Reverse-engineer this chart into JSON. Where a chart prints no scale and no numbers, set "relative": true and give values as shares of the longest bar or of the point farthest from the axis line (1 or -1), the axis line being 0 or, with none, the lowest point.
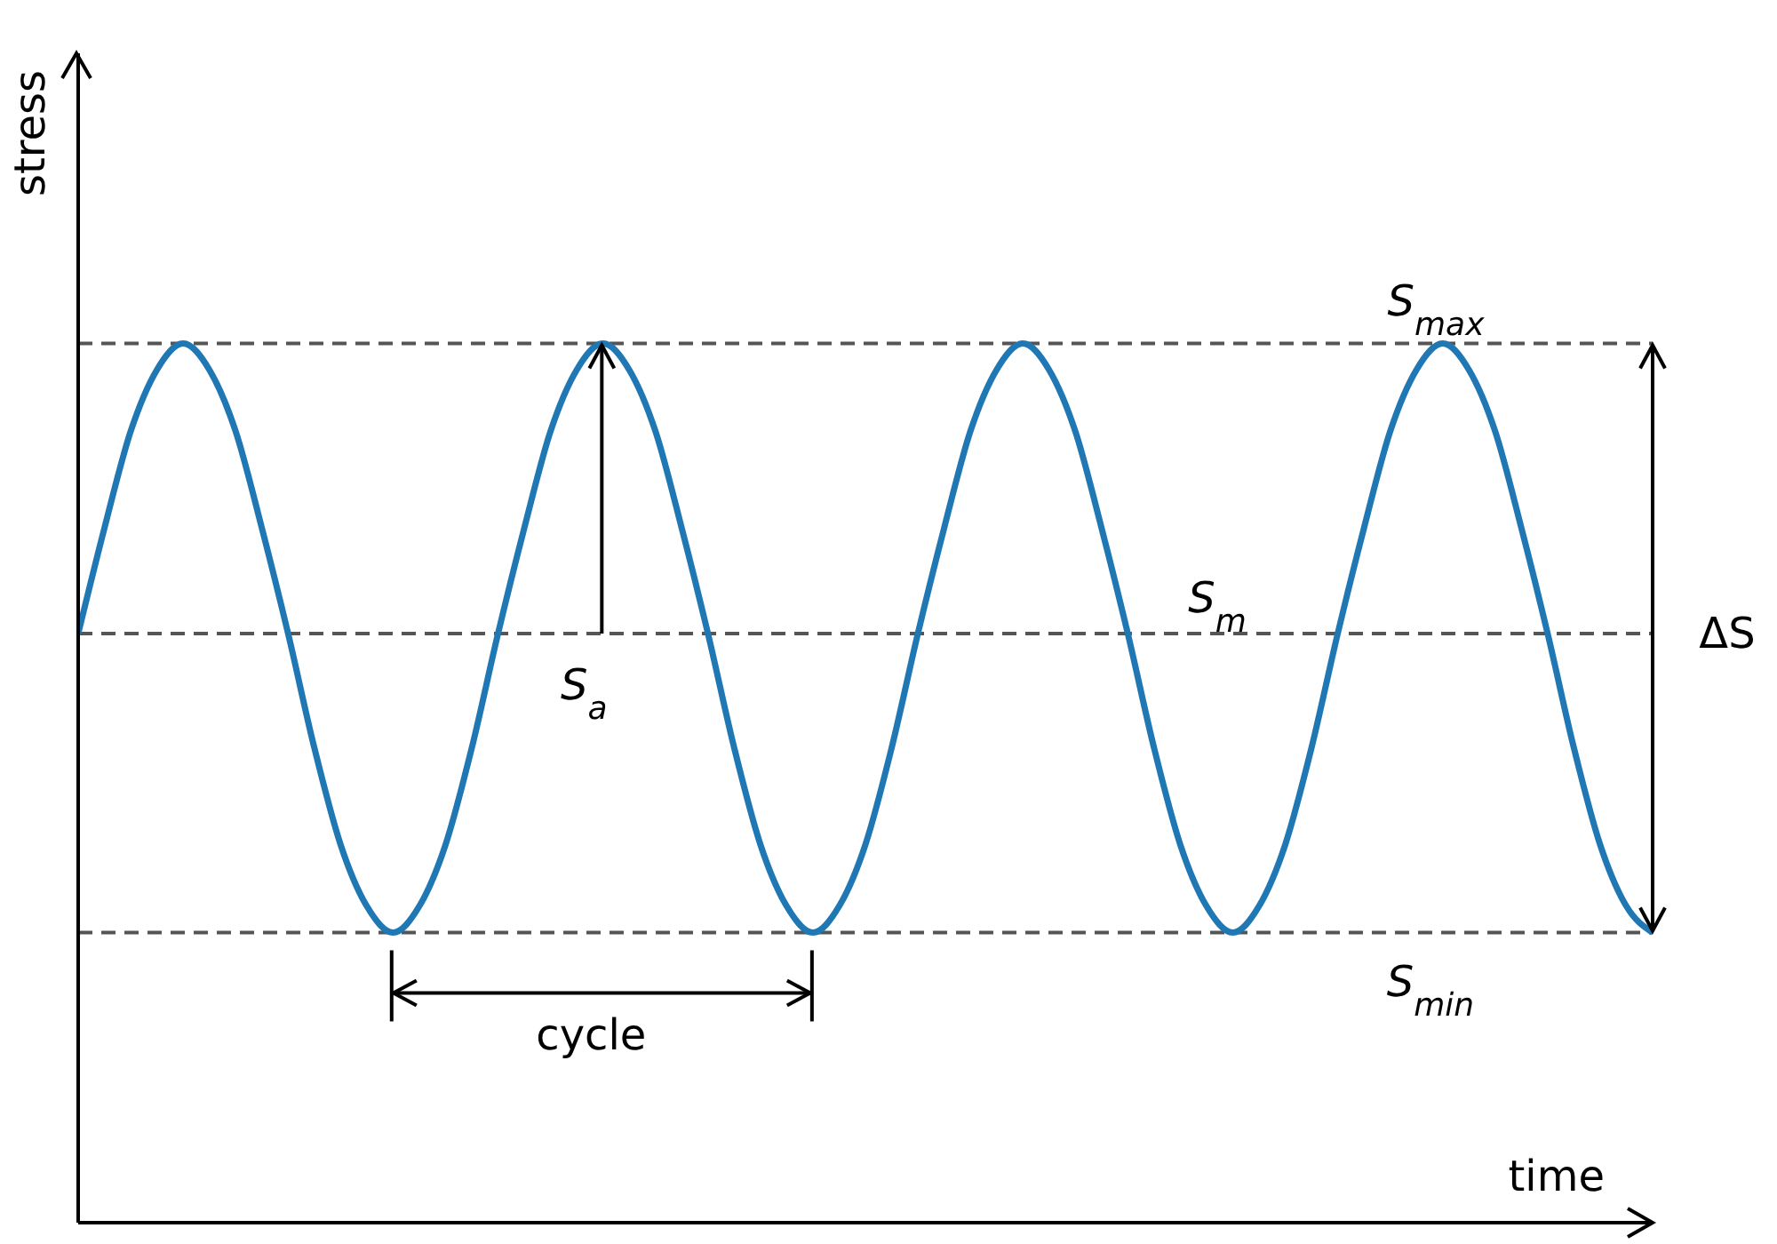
{
  "chart_data": {
    "type": "line",
    "relative": true,
    "xlabel": "time",
    "ylabel": "stress",
    "categories": [
      null,
      null,
      null,
      null,
      null,
      null,
      null,
      null,
      null,
      null,
      null,
      null,
      null,
      null,
      null,
      null,
      null,
      null,
      null,
      null,
      null,
      null,
      null,
      null,
      null,
      null,
      null,
      null,
      null,
      null,
      null,
      null,
      null,
      null,
      null,
      null,
      null,
      null,
      null,
      null,
      null,
      null,
      null,
      null,
      null,
      null,
      null,
      null,
      null,
      null,
      null,
      null,
      null,
      null,
      null,
      null,
      null,
      null,
      null,
      null,
      null
    ],
    "series": [
      {
        "color": "#1f77b4",
        "values": [
          0.67,
          0.79,
          0.9,
          0.97,
          1,
          0.97,
          0.9,
          0.79,
          0.67,
          0.54,
          0.43,
          0.36,
          0.33,
          0.36,
          0.43,
          0.54,
          0.67,
          0.79,
          0.9,
          0.97,
          1,
          0.97,
          0.9,
          0.79,
          0.67,
          0.54,
          0.43,
          0.36,
          0.33,
          0.36,
          0.43,
          0.54,
          0.67,
          0.79,
          0.9,
          0.97,
          1,
          0.97,
          0.9,
          0.79,
          0.67,
          0.54,
          0.43,
          0.36,
          0.33,
          0.36,
          0.43,
          0.54,
          0.67,
          0.79,
          0.9,
          0.97,
          1,
          0.97,
          0.9,
          0.79,
          0.67,
          0.54,
          0.43,
          0.36,
          0.33
        ]
      }
    ],
    "ref_lines": [
      {
        "axis": "y",
        "value": 1,
        "label": "S$_{max}$",
        "color": "#555555",
        "line_style": "dashed"
      },
      {
        "axis": "y",
        "value": 0.67,
        "label": "S$_{m}$",
        "color": "#555555",
        "line_style": "dashed"
      },
      {
        "axis": "y",
        "value": 0.33,
        "label": "S$_{min}$",
        "color": "#555555",
        "line_style": "dashed"
      }
    ],
    "annotations": [
      "S$_{a}$",
      "cycle",
      "ΔS"
    ],
    "marker": "none",
    "line_style": "solid",
    "grid": false,
    "legend": false
  }
}
